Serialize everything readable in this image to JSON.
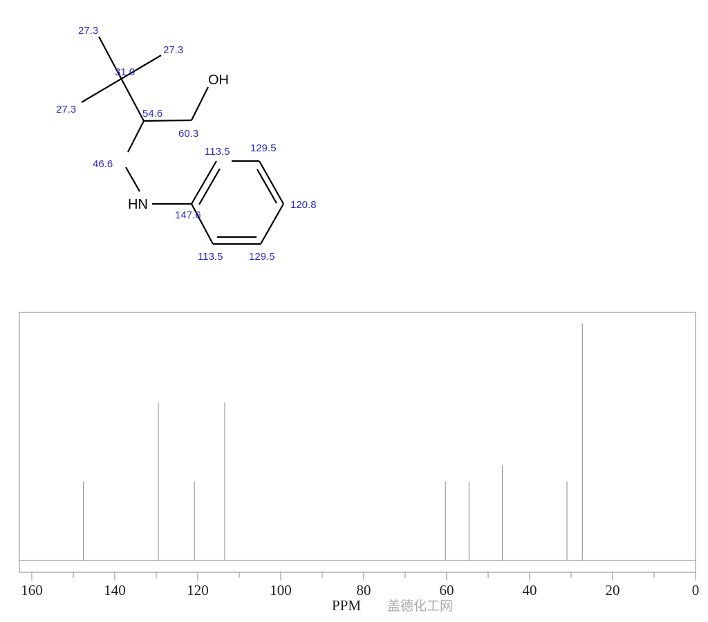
{
  "structure": {
    "atoms": {
      "oh": "OH",
      "nh": "HN"
    },
    "shift_labels": [
      {
        "id": "me-top",
        "text": "27.3"
      },
      {
        "id": "me-right",
        "text": "27.3"
      },
      {
        "id": "cq",
        "text": "31.0"
      },
      {
        "id": "me-left",
        "text": "27.3"
      },
      {
        "id": "ch",
        "text": "54.6"
      },
      {
        "id": "ch2o",
        "text": "60.3"
      },
      {
        "id": "ortho-top",
        "text": "113.5"
      },
      {
        "id": "meta-top",
        "text": "129.5"
      },
      {
        "id": "ch2n",
        "text": "46.6"
      },
      {
        "id": "ipso",
        "text": "147.6"
      },
      {
        "id": "para",
        "text": "120.8"
      },
      {
        "id": "ortho-bottom",
        "text": "113.5"
      },
      {
        "id": "meta-bottom",
        "text": "129.5"
      }
    ]
  },
  "chart_data": {
    "type": "bar",
    "xlabel": "PPM",
    "xlim": [
      160,
      0
    ],
    "x_reversed": true,
    "xticks": [
      160,
      140,
      120,
      100,
      80,
      60,
      40,
      20,
      0
    ],
    "minor_xticks": [
      150,
      130,
      110,
      90,
      70,
      50,
      30,
      10
    ],
    "grid": false,
    "peaks": [
      {
        "ppm": 147.6,
        "intensity": 1
      },
      {
        "ppm": 129.5,
        "intensity": 2
      },
      {
        "ppm": 120.8,
        "intensity": 1
      },
      {
        "ppm": 113.5,
        "intensity": 2
      },
      {
        "ppm": 60.3,
        "intensity": 1
      },
      {
        "ppm": 54.6,
        "intensity": 1
      },
      {
        "ppm": 46.6,
        "intensity": 1.2
      },
      {
        "ppm": 31.0,
        "intensity": 1
      },
      {
        "ppm": 27.3,
        "intensity": 3
      }
    ]
  },
  "watermark": "盖德化工网"
}
